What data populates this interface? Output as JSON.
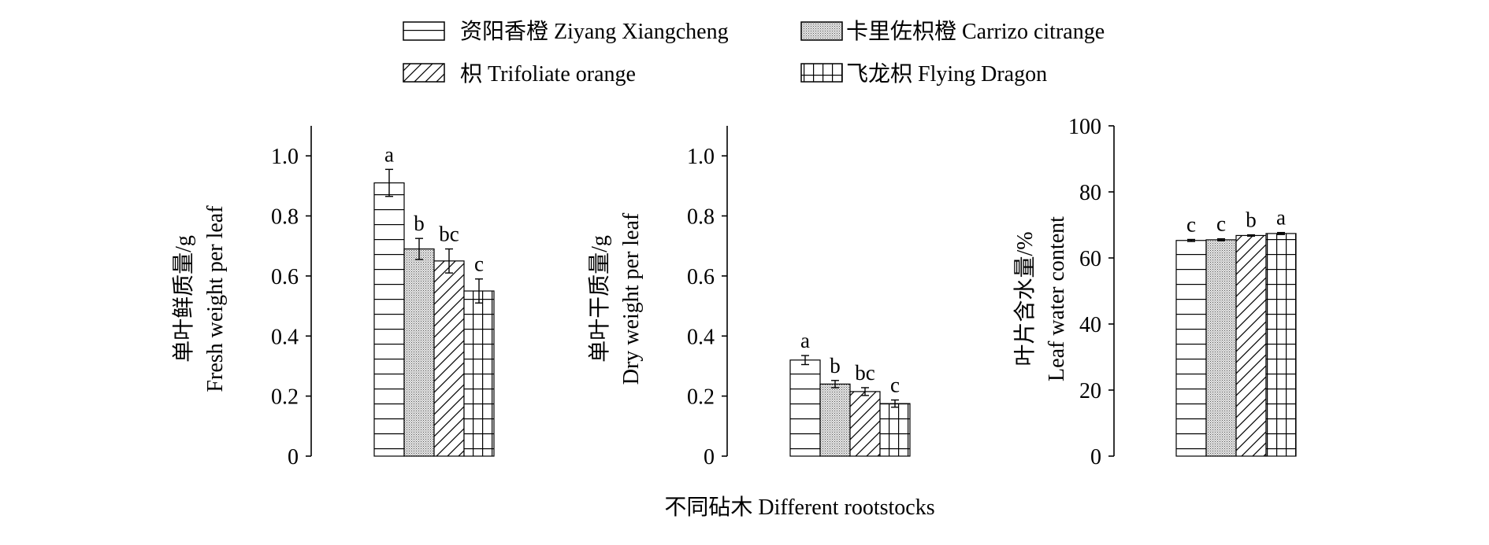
{
  "legend": [
    {
      "label": "资阳香橙 Ziyang Xiangcheng",
      "pattern": "hlines"
    },
    {
      "label": "卡里佐枳橙 Carrizo citrange",
      "pattern": "dots"
    },
    {
      "label": "枳 Trifoliate orange",
      "pattern": "diag"
    },
    {
      "label": "飞龙枳 Flying Dragon",
      "pattern": "grid"
    }
  ],
  "xlabel": "不同砧木 Different rootstocks",
  "chart_data": [
    {
      "type": "bar",
      "categories": [
        "资阳香橙 Ziyang Xiangcheng",
        "卡里佐枳橙 Carrizo citrange",
        "枳 Trifoliate orange",
        "飞龙枳 Flying Dragon"
      ],
      "values": [
        0.91,
        0.69,
        0.65,
        0.55
      ],
      "errors": [
        0.045,
        0.035,
        0.04,
        0.04
      ],
      "letters": [
        "a",
        "b",
        "bc",
        "c"
      ],
      "ylabel_cn": "单叶鲜质量/g",
      "ylabel_en": "Fresh weight per leaf",
      "ylim": [
        0,
        1.1
      ],
      "yticks": [
        0,
        0.2,
        0.4,
        0.6,
        0.8,
        1.0
      ],
      "yticklabels": [
        "0",
        "0.2",
        "0.4",
        "0.6",
        "0.8",
        "1.0"
      ]
    },
    {
      "type": "bar",
      "categories": [
        "资阳香橙 Ziyang Xiangcheng",
        "卡里佐枳橙 Carrizo citrange",
        "枳 Trifoliate orange",
        "飞龙枳 Flying Dragon"
      ],
      "values": [
        0.32,
        0.24,
        0.215,
        0.175
      ],
      "errors": [
        0.015,
        0.012,
        0.013,
        0.012
      ],
      "letters": [
        "a",
        "b",
        "bc",
        "c"
      ],
      "ylabel_cn": "单叶干质量/g",
      "ylabel_en": "Dry weight per leaf",
      "ylim": [
        0,
        1.1
      ],
      "yticks": [
        0,
        0.2,
        0.4,
        0.6,
        0.8,
        1.0
      ],
      "yticklabels": [
        "0",
        "0.2",
        "0.4",
        "0.6",
        "0.8",
        "1.0"
      ]
    },
    {
      "type": "bar",
      "categories": [
        "资阳香橙 Ziyang Xiangcheng",
        "卡里佐枳橙 Carrizo citrange",
        "枳 Trifoliate orange",
        "飞龙枳 Flying Dragon"
      ],
      "values": [
        65.3,
        65.5,
        66.8,
        67.4
      ],
      "errors": [
        0.3,
        0.3,
        0.2,
        0.3
      ],
      "letters": [
        "c",
        "c",
        "b",
        "a"
      ],
      "ylabel_cn": "叶片含水量/%",
      "ylabel_en": "Leaf water content",
      "ylim": [
        0,
        100
      ],
      "yticks": [
        0,
        20,
        40,
        60,
        80,
        100
      ],
      "yticklabels": [
        "0",
        "20",
        "40",
        "60",
        "80",
        "100"
      ]
    }
  ]
}
